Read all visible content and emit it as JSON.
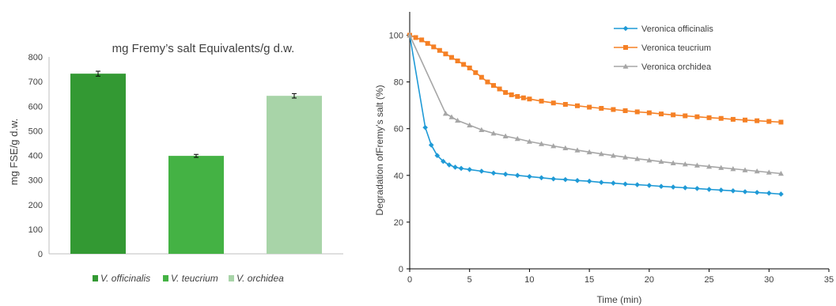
{
  "chart_data": [
    {
      "type": "bar",
      "title": "mg Fremy’s salt Equivalents/g d.w.",
      "xlabel": "",
      "ylabel": "mg FSE/g d.w.",
      "categories": [
        "V. officinalis",
        "V. teucrium",
        "V. orchidea"
      ],
      "values": [
        732,
        398,
        642
      ],
      "errors": [
        10,
        6,
        9
      ],
      "colors": [
        "#339933",
        "#44b244",
        "#a8d4a8"
      ],
      "ylim": [
        0,
        800
      ],
      "yticks": [
        "0",
        "100",
        "200",
        "300",
        "400",
        "500",
        "600",
        "700",
        "800"
      ],
      "grid": false,
      "legend": {
        "position": "bottom",
        "items": [
          "V. officinalis",
          "V. teucrium",
          "V. orchidea"
        ]
      }
    },
    {
      "type": "line",
      "title": "",
      "xlabel": "Time (min)",
      "ylabel": "Degradation ofFremy’s salt (%)",
      "xlim": [
        0,
        35
      ],
      "ylim": [
        0,
        110
      ],
      "xticks": [
        "0",
        "5",
        "10",
        "15",
        "20",
        "25",
        "30",
        "35"
      ],
      "yticks": [
        "0",
        "20",
        "40",
        "60",
        "80",
        "100"
      ],
      "grid": false,
      "legend": {
        "position": "top-right"
      },
      "series": [
        {
          "name": "Veronica officinalis",
          "color": "#1f9ad6",
          "marker": "diamond",
          "x": [
            0,
            1.3,
            1.8,
            2.3,
            2.8,
            3.3,
            3.8,
            4.3,
            5,
            6,
            7,
            8,
            9,
            10,
            11,
            12,
            13,
            14,
            15,
            16,
            17,
            18,
            19,
            20,
            21,
            22,
            23,
            24,
            25,
            26,
            27,
            28,
            29,
            30,
            31
          ],
          "y": [
            100,
            60.5,
            53,
            48.5,
            46,
            44.5,
            43.5,
            43,
            42.5,
            41.8,
            41,
            40.5,
            40,
            39.5,
            39,
            38.5,
            38.2,
            37.8,
            37.5,
            37,
            36.7,
            36.3,
            36,
            35.7,
            35.3,
            35,
            34.7,
            34.4,
            34,
            33.7,
            33.4,
            33,
            32.7,
            32.4,
            32
          ]
        },
        {
          "name": "Veronica teucrium",
          "color": "#f58025",
          "marker": "square",
          "x": [
            0,
            0.5,
            1,
            1.5,
            2,
            2.5,
            3,
            3.5,
            4,
            4.5,
            5,
            5.5,
            6,
            6.5,
            7,
            7.5,
            8,
            8.5,
            9,
            9.5,
            10,
            11,
            12,
            13,
            14,
            15,
            16,
            17,
            18,
            19,
            20,
            21,
            22,
            23,
            24,
            25,
            26,
            27,
            28,
            29,
            30,
            31
          ],
          "y": [
            100,
            99,
            98,
            96.5,
            95,
            93.5,
            92,
            90.5,
            89,
            87.5,
            86,
            84,
            82,
            80,
            78.5,
            77,
            75.5,
            74.5,
            73.8,
            73.2,
            72.7,
            71.8,
            71,
            70.4,
            69.8,
            69.2,
            68.7,
            68.2,
            67.7,
            67.2,
            66.8,
            66.3,
            65.9,
            65.5,
            65.1,
            64.7,
            64.4,
            64,
            63.7,
            63.4,
            63.1,
            62.8
          ]
        },
        {
          "name": "Veronica orchidea",
          "color": "#a6a6a6",
          "marker": "triangle",
          "x": [
            0,
            3,
            3.5,
            4,
            5,
            6,
            7,
            8,
            9,
            10,
            11,
            12,
            13,
            14,
            15,
            16,
            17,
            18,
            19,
            20,
            21,
            22,
            23,
            24,
            25,
            26,
            27,
            28,
            29,
            30,
            31
          ],
          "y": [
            100,
            66.5,
            65,
            63.5,
            61.5,
            59.5,
            58,
            56.8,
            55.7,
            54.5,
            53.5,
            52.6,
            51.7,
            50.8,
            50,
            49.2,
            48.5,
            47.8,
            47.1,
            46.5,
            45.9,
            45.3,
            44.8,
            44.3,
            43.8,
            43.3,
            42.8,
            42.3,
            41.8,
            41.3,
            40.8
          ]
        }
      ]
    }
  ]
}
